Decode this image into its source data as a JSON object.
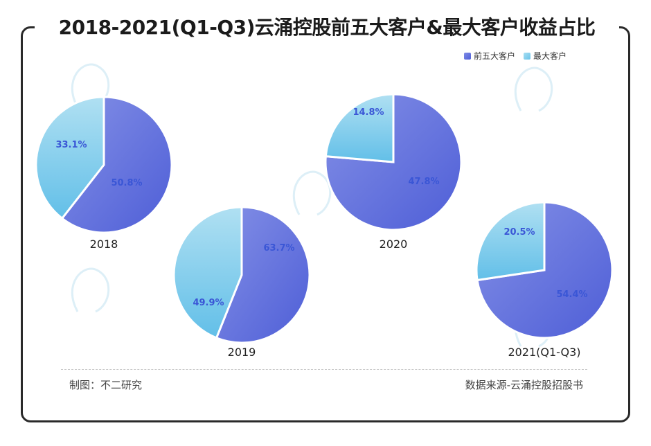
{
  "title": "2018-2021(Q1-Q3)云涌控股前五大客户&最大客户收益占比",
  "legend": [
    {
      "label": "前五大客户",
      "color": "#6a78e0"
    },
    {
      "label": "最大客户",
      "color": "#8fd0ec"
    }
  ],
  "footer": {
    "left": "制图：不二研究",
    "right": "数据来源-云涌控股招股书"
  },
  "chart_data": [
    {
      "type": "pie",
      "title": "2018",
      "slices": [
        {
          "name": "前五大客户",
          "value": 50.8,
          "label": "50.8%"
        },
        {
          "name": "最大客户",
          "value": 33.1,
          "label": "33.1%"
        }
      ]
    },
    {
      "type": "pie",
      "title": "2019",
      "slices": [
        {
          "name": "前五大客户",
          "value": 63.7,
          "label": "63.7%"
        },
        {
          "name": "最大客户",
          "value": 49.9,
          "label": "49.9%"
        }
      ]
    },
    {
      "type": "pie",
      "title": "2020",
      "slices": [
        {
          "name": "前五大客户",
          "value": 47.8,
          "label": "47.8%"
        },
        {
          "name": "最大客户",
          "value": 14.8,
          "label": "14.8%"
        }
      ]
    },
    {
      "type": "pie",
      "title": "2021(Q1-Q3)",
      "slices": [
        {
          "name": "前五大客户",
          "value": 54.4,
          "label": "54.4%"
        },
        {
          "name": "最大客户",
          "value": 20.5,
          "label": "20.5%"
        }
      ]
    }
  ]
}
